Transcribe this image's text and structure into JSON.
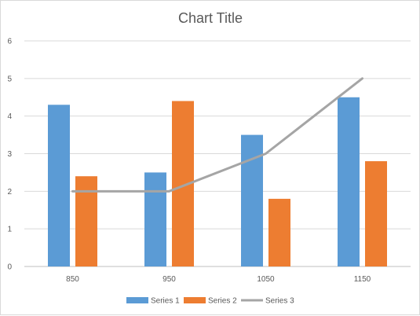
{
  "chart_data": {
    "type": "bar",
    "title": "Chart Title",
    "xlabel": "",
    "ylabel": "",
    "categories": [
      "850",
      "950",
      "1050",
      "1150"
    ],
    "ylim": [
      0,
      6
    ],
    "yticks": [
      "0",
      "1",
      "2",
      "3",
      "4",
      "5",
      "6"
    ],
    "grid": true,
    "legend_position": "bottom",
    "series": [
      {
        "name": "Series 1",
        "type": "bar",
        "color": "#5b9bd5",
        "values": [
          4.3,
          2.5,
          3.5,
          4.5
        ]
      },
      {
        "name": "Series 2",
        "type": "bar",
        "color": "#ed7d31",
        "values": [
          2.4,
          4.4,
          1.8,
          2.8
        ]
      },
      {
        "name": "Series 3",
        "type": "line",
        "color": "#a5a5a5",
        "values": [
          2,
          2,
          3,
          5
        ]
      }
    ]
  }
}
